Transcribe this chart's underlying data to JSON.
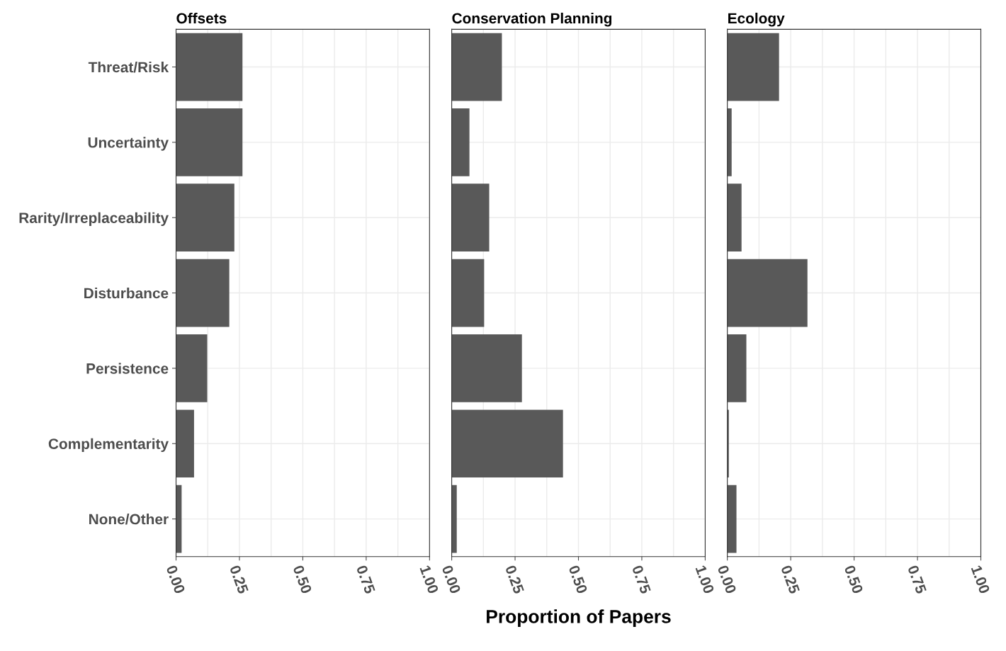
{
  "chart_data": [
    {
      "type": "bar",
      "orientation": "horizontal",
      "title": "Offsets",
      "categories": [
        "Threat/Risk",
        "Uncertainty",
        "Rarity/Irreplaceability",
        "Disturbance",
        "Persistence",
        "Complementarity",
        "None/Other"
      ],
      "values": [
        0.262,
        0.262,
        0.23,
        0.21,
        0.123,
        0.071,
        0.022
      ],
      "color": "#595959",
      "xlim": [
        0,
        1
      ],
      "xticks": [
        {
          "value": 0,
          "label": "0.00"
        },
        {
          "value": 0.25,
          "label": "0.25"
        },
        {
          "value": 0.5,
          "label": "0.50"
        },
        {
          "value": 0.75,
          "label": "0.75"
        },
        {
          "value": 1,
          "label": "1.00"
        }
      ],
      "grid": true
    },
    {
      "type": "bar",
      "orientation": "horizontal",
      "title": "Conservation Planning",
      "xlabel": "Proportion of Papers",
      "categories": [
        null,
        null,
        null,
        null,
        null,
        null,
        null
      ],
      "values": [
        0.198,
        0.07,
        0.148,
        0.128,
        0.277,
        0.439,
        0.02
      ],
      "color": "#595959",
      "xlim": [
        0,
        1
      ],
      "xticks": [
        {
          "value": 0,
          "label": "0.00"
        },
        {
          "value": 0.25,
          "label": "0.25"
        },
        {
          "value": 0.5,
          "label": "0.50"
        },
        {
          "value": 0.75,
          "label": "0.75"
        },
        {
          "value": 1,
          "label": "1.00"
        }
      ],
      "grid": true,
      "tick_labels": "x"
    },
    {
      "type": "bar",
      "orientation": "horizontal",
      "title": "Ecology",
      "categories": [
        null,
        null,
        null,
        null,
        null,
        null,
        null
      ],
      "values": [
        0.204,
        0.017,
        0.056,
        0.316,
        0.075,
        0.006,
        0.036
      ],
      "color": "#595959",
      "xlim": [
        0,
        1
      ],
      "xticks": [
        {
          "value": 0,
          "label": "0.00"
        },
        {
          "value": 0.25,
          "label": "0.25"
        },
        {
          "value": 0.5,
          "label": "0.50"
        },
        {
          "value": 0.75,
          "label": "0.75"
        },
        {
          "value": 1,
          "label": "1.00"
        }
      ],
      "grid": true,
      "tick_labels": "x"
    }
  ]
}
